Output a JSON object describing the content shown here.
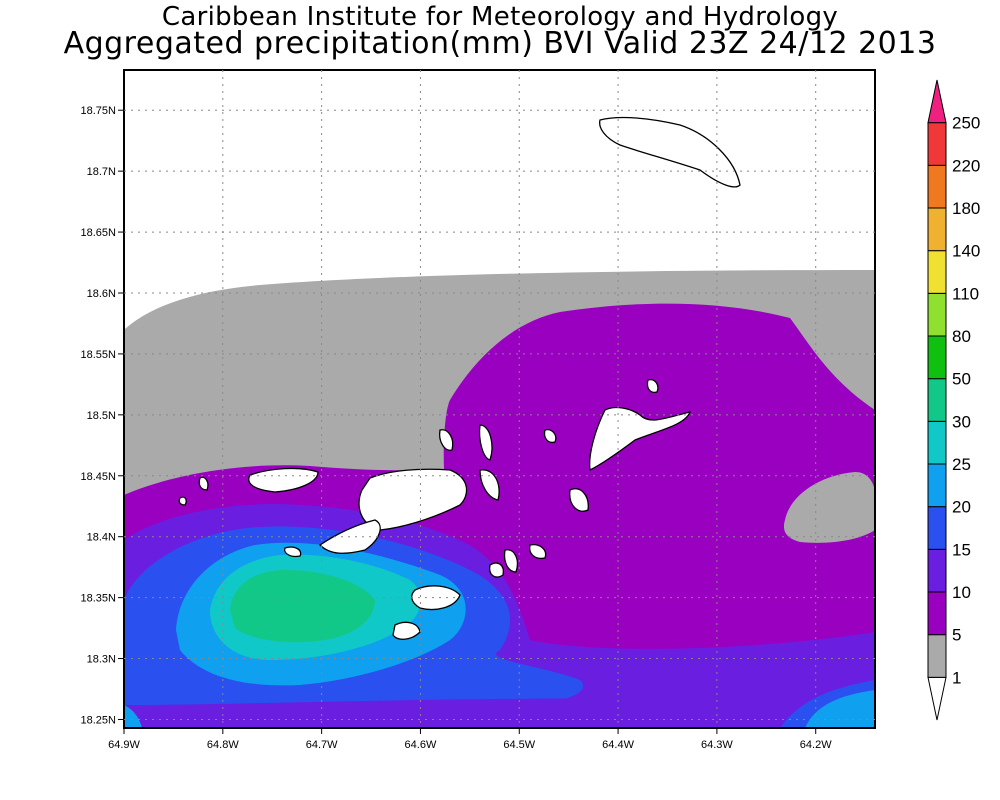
{
  "header": {
    "title": "Caribbean Institute for Meteorology and Hydrology",
    "subtitle": "Aggregated precipitation(mm) BVI Valid 23Z 24/12 2013"
  },
  "map": {
    "x_ticks": [
      "64.9W",
      "64.8W",
      "64.7W",
      "64.6W",
      "64.5W",
      "64.4W",
      "64.3W",
      "64.2W"
    ],
    "y_ticks": [
      "18.75N",
      "18.7N",
      "18.65N",
      "18.6N",
      "18.55N",
      "18.5N",
      "18.45N",
      "18.4N",
      "18.35N",
      "18.3N",
      "18.25N"
    ],
    "lon_range": [
      -64.9,
      -64.14
    ],
    "lat_range": [
      18.243,
      18.783
    ],
    "grid": true
  },
  "colorbar": {
    "levels": [
      "1",
      "5",
      "10",
      "15",
      "20",
      "25",
      "30",
      "50",
      "80",
      "110",
      "140",
      "180",
      "220",
      "250"
    ],
    "colors": [
      "#ffffff",
      "#aaaaaa",
      "#9a00c0",
      "#6a1ee0",
      "#2a50f0",
      "#10a0f0",
      "#10c8c8",
      "#12c888",
      "#10c010",
      "#90e030",
      "#f0e030",
      "#f0b030",
      "#f07820",
      "#f03838",
      "#f02080"
    ]
  }
}
